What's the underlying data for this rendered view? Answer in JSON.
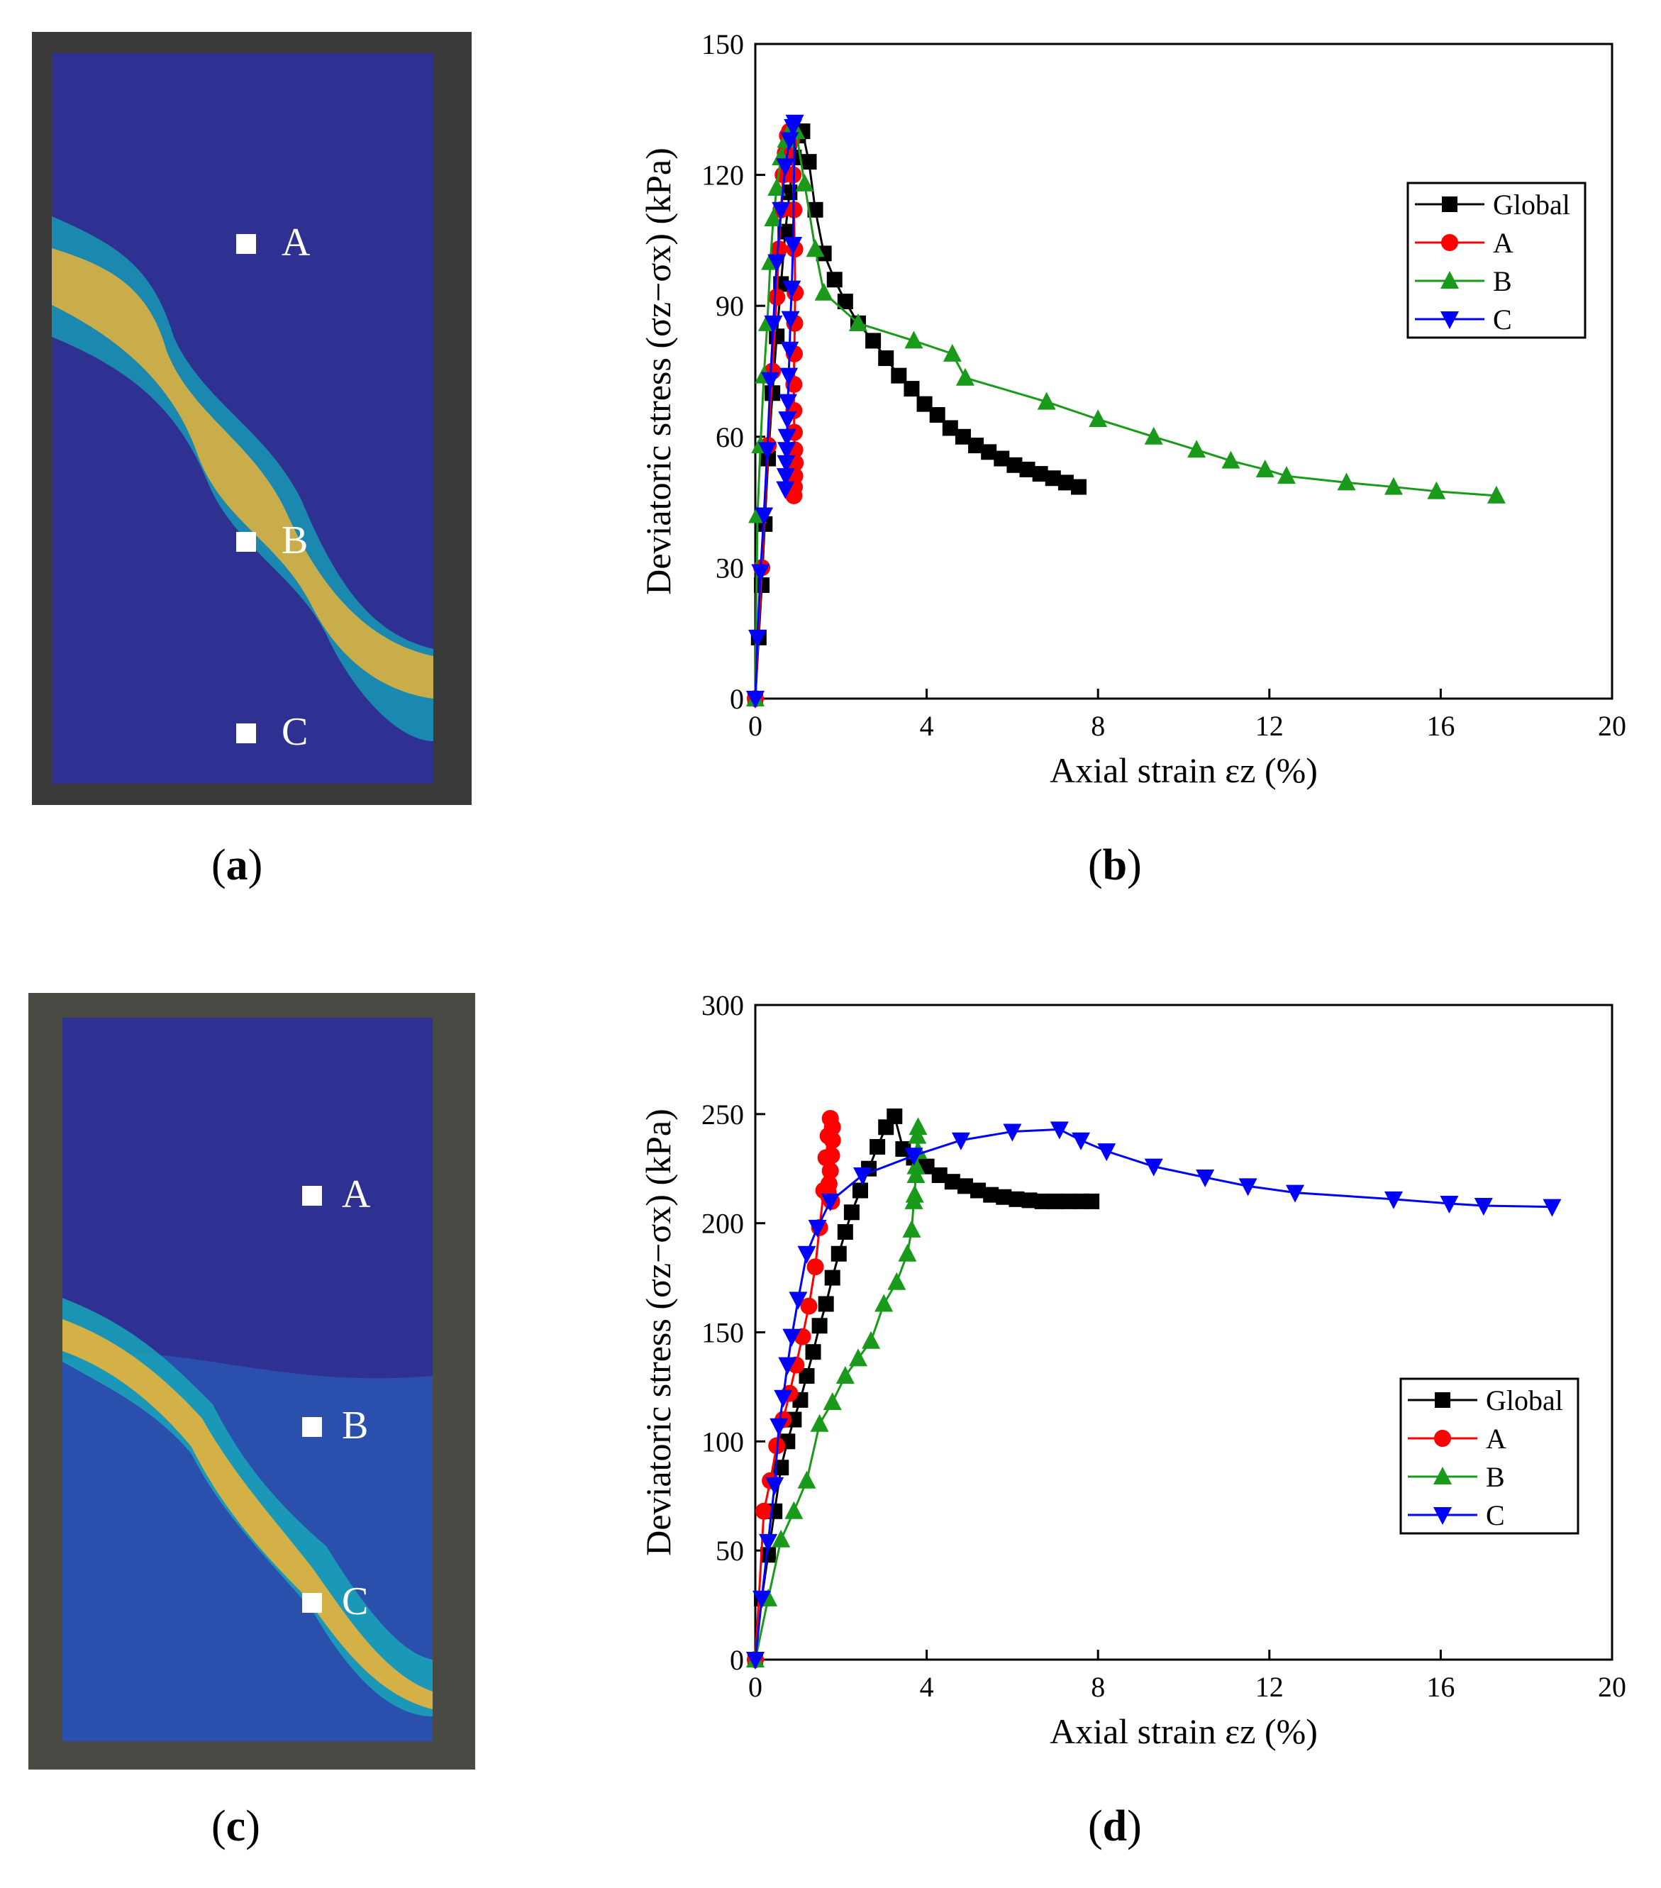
{
  "panels": {
    "a": {
      "label": "a"
    },
    "b": {
      "label": "b"
    },
    "c": {
      "label": "c"
    },
    "d": {
      "label": "d"
    }
  },
  "points_a": [
    "A",
    "B",
    "C"
  ],
  "points_c": [
    "A",
    "B",
    "C"
  ],
  "colors": {
    "global": "#000000",
    "A": "#ff0000",
    "B": "#1a9a1a",
    "C": "#0000ff",
    "field_low": "#2c2f8f",
    "field_mid": "#1aa0b8",
    "field_high": "#e8b43a"
  },
  "chart_data": [
    {
      "type": "line",
      "panel": "b",
      "xlabel": "Axial strain εz (%)",
      "ylabel": "Deviatoric stress (σz−σx) (kPa)",
      "xlim": [
        0,
        20
      ],
      "ylim": [
        0,
        150
      ],
      "xticks": [
        0,
        4,
        8,
        12,
        16,
        20
      ],
      "yticks": [
        0,
        30,
        60,
        90,
        120,
        150
      ],
      "legend_position": "top-right",
      "series": [
        {
          "name": "Global",
          "marker": "square",
          "x": [
            0,
            0.08,
            0.15,
            0.22,
            0.3,
            0.4,
            0.5,
            0.6,
            0.7,
            0.8,
            0.9,
            1.0,
            1.1,
            1.25,
            1.4,
            1.6,
            1.85,
            2.1,
            2.4,
            2.75,
            3.05,
            3.35,
            3.65,
            3.95,
            4.25,
            4.55,
            4.85,
            5.15,
            5.45,
            5.75,
            6.05,
            6.35,
            6.65,
            6.95,
            7.25,
            7.55
          ],
          "y": [
            0,
            14,
            26,
            40,
            55,
            70,
            83,
            95,
            107,
            116,
            124,
            129,
            130,
            123,
            112,
            102,
            96,
            91,
            86,
            82,
            78,
            74,
            71,
            67.5,
            65,
            62,
            60,
            58,
            56.5,
            55,
            53.5,
            52.5,
            51.5,
            50.5,
            49.5,
            48.5
          ]
        },
        {
          "name": "A",
          "marker": "circle",
          "x": [
            0,
            0.15,
            0.3,
            0.4,
            0.5,
            0.55,
            0.6,
            0.65,
            0.7,
            0.75,
            0.8,
            0.85,
            0.88,
            0.9,
            0.92,
            0.93,
            0.92,
            0.91,
            0.9,
            0.9,
            0.91,
            0.92,
            0.93,
            0.92,
            0.91,
            0.9
          ],
          "y": [
            0,
            30,
            58,
            75,
            92,
            103,
            112,
            120,
            125,
            129,
            130,
            128,
            120,
            112,
            103,
            93,
            86,
            79,
            72,
            66,
            61,
            57,
            54,
            51,
            48.5,
            46.5
          ]
        },
        {
          "name": "B",
          "marker": "triangle-up",
          "x": [
            0,
            0.05,
            0.12,
            0.2,
            0.28,
            0.35,
            0.42,
            0.5,
            0.6,
            0.72,
            0.85,
            0.95,
            1.15,
            1.4,
            1.6,
            2.4,
            3.7,
            4.6,
            4.9,
            6.8,
            8.0,
            9.3,
            10.3,
            11.1,
            11.9,
            12.4,
            13.8,
            14.9,
            15.9,
            17.3
          ],
          "y": [
            0,
            42,
            58,
            74,
            86,
            100,
            110,
            117,
            124,
            128,
            131,
            130,
            118,
            103,
            93,
            86,
            82,
            79,
            73.5,
            68,
            64,
            60,
            57,
            54.5,
            52.5,
            51,
            49.5,
            48.5,
            47.5,
            46.5
          ]
        },
        {
          "name": "C",
          "marker": "triangle-down",
          "x": [
            0,
            0.05,
            0.12,
            0.2,
            0.28,
            0.35,
            0.42,
            0.5,
            0.6,
            0.7,
            0.8,
            0.88,
            0.92,
            0.88,
            0.85,
            0.82,
            0.8,
            0.78,
            0.76,
            0.75,
            0.74,
            0.73,
            0.72,
            0.71,
            0.7
          ],
          "y": [
            0,
            14,
            29,
            42,
            57,
            73,
            86,
            100,
            112,
            122,
            128,
            131,
            132,
            104,
            94,
            87,
            80,
            74,
            68,
            64,
            60,
            57,
            54,
            51,
            48
          ]
        }
      ]
    },
    {
      "type": "line",
      "panel": "d",
      "xlabel": "Axial strain εz (%)",
      "ylabel": "Deviatoric stress (σz−σx) (kPa)",
      "xlim": [
        0,
        20
      ],
      "ylim": [
        0,
        300
      ],
      "xticks": [
        0,
        4,
        8,
        12,
        16,
        20
      ],
      "yticks": [
        0,
        50,
        100,
        150,
        200,
        250,
        300
      ],
      "legend_position": "bottom-right",
      "series": [
        {
          "name": "Global",
          "marker": "square",
          "x": [
            0,
            0.15,
            0.3,
            0.45,
            0.6,
            0.75,
            0.9,
            1.05,
            1.2,
            1.35,
            1.5,
            1.65,
            1.8,
            1.95,
            2.1,
            2.25,
            2.45,
            2.65,
            2.85,
            3.05,
            3.25,
            3.45,
            3.7,
            4.0,
            4.3,
            4.6,
            4.9,
            5.2,
            5.5,
            5.8,
            6.1,
            6.4,
            6.7,
            7.0,
            7.3,
            7.6,
            7.85
          ],
          "y": [
            0,
            28,
            48,
            68,
            88,
            100,
            110,
            119,
            130,
            141,
            153,
            163,
            175,
            186,
            196,
            205,
            215,
            225,
            235,
            244,
            249,
            234,
            230,
            226,
            222,
            219,
            217,
            215,
            213,
            212,
            211,
            210.5,
            210,
            210,
            210,
            210,
            210
          ]
        },
        {
          "name": "A",
          "marker": "circle",
          "x": [
            0,
            0.2,
            0.35,
            0.5,
            0.65,
            0.8,
            0.95,
            1.1,
            1.25,
            1.4,
            1.5,
            1.6,
            1.65,
            1.7,
            1.75,
            1.8,
            1.8,
            1.78,
            1.75,
            1.72,
            1.7,
            1.72,
            1.75,
            1.78
          ],
          "y": [
            0,
            68,
            82,
            98,
            110,
            122,
            135,
            148,
            162,
            180,
            198,
            215,
            230,
            240,
            248,
            244,
            238,
            231,
            224,
            218,
            214,
            212,
            211,
            210
          ]
        },
        {
          "name": "B",
          "marker": "triangle-up",
          "x": [
            0,
            0.3,
            0.6,
            0.9,
            1.2,
            1.5,
            1.8,
            2.1,
            2.4,
            2.7,
            3.0,
            3.3,
            3.55,
            3.65,
            3.7,
            3.75,
            3.8,
            3.8,
            3.78,
            3.75,
            3.72
          ],
          "y": [
            0,
            28,
            55,
            68,
            82,
            108,
            118,
            130,
            138,
            146,
            163,
            173,
            186,
            197,
            210,
            222,
            233,
            244,
            240,
            226,
            213
          ]
        },
        {
          "name": "C",
          "marker": "triangle-down",
          "x": [
            0,
            0.15,
            0.3,
            0.45,
            0.55,
            0.65,
            0.75,
            0.85,
            1.0,
            1.2,
            1.45,
            1.75,
            2.5,
            3.7,
            4.8,
            6.0,
            7.1,
            7.6,
            8.2,
            9.3,
            10.5,
            11.5,
            12.6,
            14.9,
            16.2,
            17.0,
            18.6
          ],
          "y": [
            0,
            28,
            54,
            80,
            107,
            120,
            135,
            148,
            165,
            186,
            198,
            210,
            222,
            231,
            238,
            242,
            243,
            238,
            233,
            226,
            221,
            217,
            214,
            211,
            209,
            208,
            207.5
          ]
        }
      ]
    }
  ]
}
